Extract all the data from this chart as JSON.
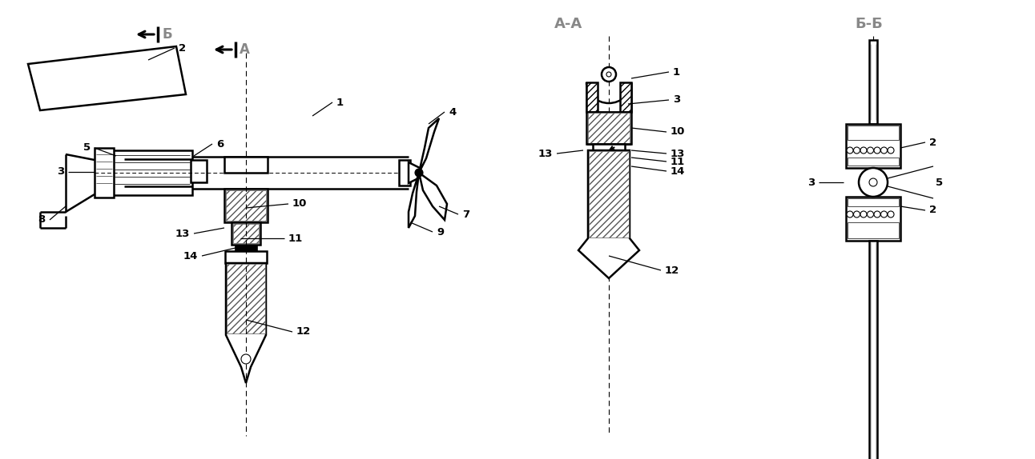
{
  "bg_color": "#ffffff",
  "line_color": "#000000",
  "labels": {
    "B_arrow": "Б",
    "A_arrow": "А",
    "AA_section": "А-А",
    "BB_section": "Б-Б"
  },
  "figsize": [
    12.92,
    5.74
  ],
  "dpi": 100
}
